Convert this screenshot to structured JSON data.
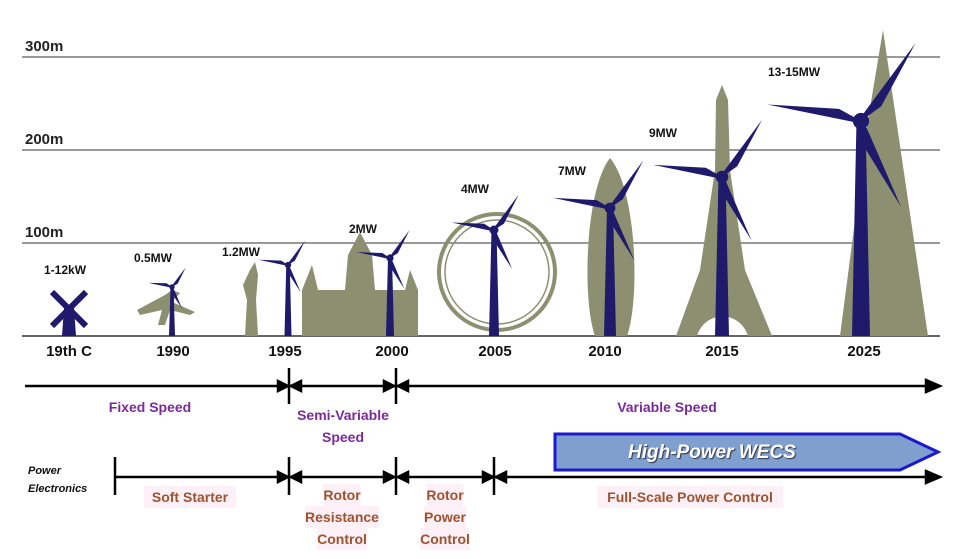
{
  "axis": {
    "labels": [
      "300m",
      "200m",
      "100m"
    ]
  },
  "years": [
    "19th C",
    "1990",
    "1995",
    "2000",
    "2005",
    "2010",
    "2015",
    "2025"
  ],
  "ratings": [
    "1-12kW",
    "0.5MW",
    "1.2MW",
    "2MW",
    "4MW",
    "7MW",
    "9MW",
    "13-15MW"
  ],
  "speed": {
    "fixed": "Fixed Speed",
    "semi1": "Semi-Variable",
    "semi2": "Speed",
    "variable": "Variable Speed"
  },
  "power_electronics": {
    "label1": "Power",
    "label2": "Electronics",
    "soft": "Soft Starter",
    "rrc1": "Rotor",
    "rrc2": "Resistance",
    "rrc3": "Control",
    "rpc1": "Rotor",
    "rpc2": "Power",
    "rpc3": "Control",
    "full": "Full-Scale Power Control"
  },
  "banner": "High-Power WECS",
  "colors": {
    "turbine": "#1f1a6b",
    "landmark": "#8c9070",
    "banner_fill": "#7f9fcf",
    "banner_border": "#1a1acc",
    "text_purple": "#7a2a9a",
    "text_brown": "#a0522d"
  }
}
